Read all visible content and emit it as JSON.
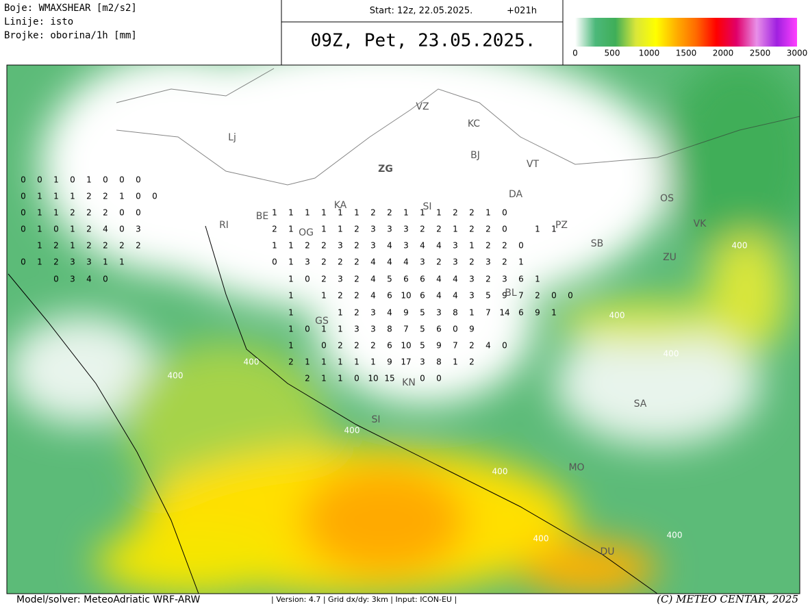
{
  "header": {
    "legend_lines": [
      "Boje: WMAXSHEAR [m2/s2]",
      "Linije: isto",
      "Brojke: oborina/1h [mm]"
    ],
    "start": "Start: 12z, 22.05.2025.",
    "lead": "+021h",
    "valid": "09Z, Pet, 23.05.2025."
  },
  "colorbar": {
    "colors": [
      "#ffffff",
      "#4cb87a",
      "#3fae58",
      "#d9e63a",
      "#ffff00",
      "#ffb000",
      "#ff6a00",
      "#ff0000",
      "#e0006a",
      "#e890e8",
      "#a020e0",
      "#ff40ff"
    ],
    "ticks": [
      0,
      500,
      1000,
      1500,
      2000,
      2500,
      3000
    ]
  },
  "map": {
    "cities": [
      "VZ",
      "KC",
      "Lj",
      "ZG",
      "BJ",
      "VT",
      "KA",
      "SI",
      "DA",
      "OS",
      "RI",
      "BE",
      "OG",
      "PZ",
      "SB",
      "VK",
      "ZU",
      "BL",
      "GS",
      "KN",
      "SI",
      "SA",
      "MO",
      "DU"
    ],
    "contour_labels": [
      "400",
      "400",
      "400",
      "400",
      "400",
      "400",
      "400",
      "400",
      "400"
    ],
    "precip_rows": [
      [
        0,
        0,
        1,
        0,
        1,
        0,
        0,
        0
      ],
      [
        0,
        1,
        1,
        1,
        2,
        2,
        1,
        0,
        0
      ],
      [
        0,
        1,
        1,
        2,
        2,
        2,
        0,
        0
      ],
      [
        0,
        1,
        0,
        1,
        2,
        4,
        0,
        3
      ],
      [
        1,
        2,
        1,
        2,
        2,
        2,
        2
      ],
      [
        0,
        1,
        2,
        3,
        3,
        1,
        1
      ],
      [
        0,
        3,
        4,
        0
      ],
      [
        1,
        1,
        1,
        1,
        1,
        1,
        2,
        2,
        1,
        1,
        1,
        2,
        2,
        1,
        0
      ],
      [
        2,
        1,
        null,
        1,
        1,
        2,
        3,
        3,
        3,
        2,
        2,
        1,
        2,
        2,
        0,
        null,
        1,
        1
      ],
      [
        1,
        1,
        2,
        2,
        3,
        2,
        3,
        4,
        3,
        4,
        4,
        3,
        1,
        2,
        2,
        0
      ],
      [
        0,
        1,
        3,
        2,
        2,
        2,
        4,
        4,
        4,
        3,
        2,
        3,
        2,
        3,
        2,
        1
      ],
      [
        1,
        0,
        2,
        3,
        2,
        4,
        5,
        6,
        6,
        4,
        4,
        3,
        2,
        3,
        6,
        1
      ],
      [
        1,
        null,
        1,
        2,
        2,
        4,
        6,
        10,
        6,
        4,
        4,
        3,
        5,
        9,
        7,
        2,
        0,
        0
      ],
      [
        1,
        null,
        null,
        1,
        2,
        3,
        4,
        9,
        5,
        3,
        8,
        1,
        7,
        14,
        6,
        9,
        1
      ],
      [
        1,
        0,
        1,
        1,
        3,
        3,
        8,
        7,
        5,
        6,
        0,
        9
      ],
      [
        1,
        null,
        0,
        2,
        2,
        2,
        6,
        10,
        5,
        9,
        7,
        2,
        4,
        0
      ],
      [
        2,
        1,
        1,
        1,
        1,
        1,
        9,
        17,
        3,
        8,
        1,
        2
      ],
      [
        2,
        1,
        1,
        0,
        10,
        15,
        null,
        0,
        0
      ]
    ]
  },
  "footer": {
    "model": "Model/solver: MeteoAdriatic WRF-ARW",
    "info": "| Version: 4.7 | Grid dx/dy: 3km | Input: ICON-EU |",
    "copyright": "(C) METEO CENTAR, 2025"
  }
}
